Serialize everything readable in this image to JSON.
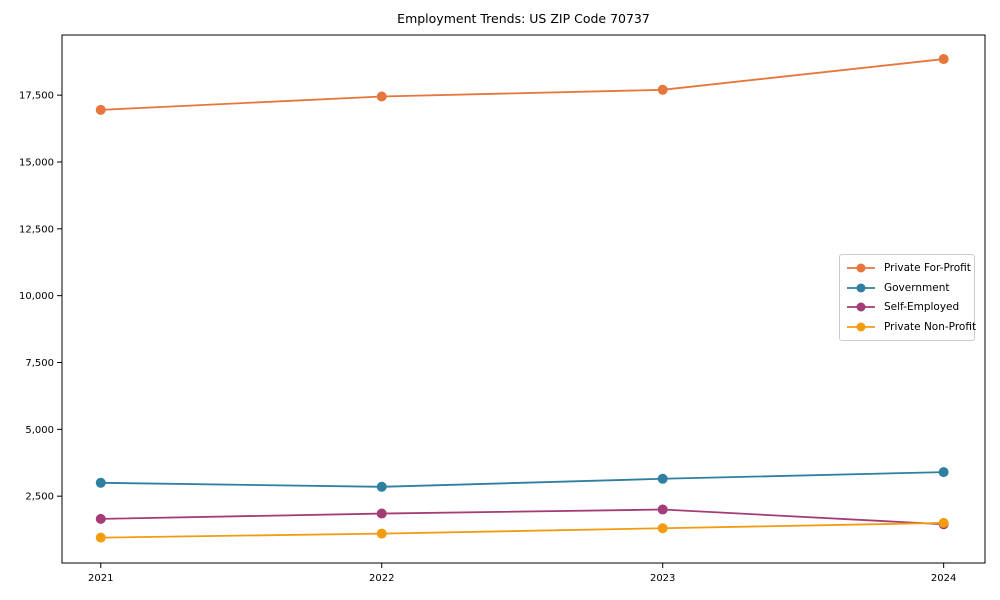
{
  "chart_data": {
    "type": "line",
    "title": "Employment Trends: US ZIP Code 70737",
    "xlabel": "",
    "ylabel": "",
    "categories": [
      "2021",
      "2022",
      "2023",
      "2024"
    ],
    "series": [
      {
        "name": "Private For-Profit",
        "color": "#E6763C",
        "values": [
          16950,
          17450,
          17700,
          18850
        ]
      },
      {
        "name": "Government",
        "color": "#2E7FA0",
        "values": [
          3000,
          2850,
          3150,
          3400
        ]
      },
      {
        "name": "Self-Employed",
        "color": "#A43C77",
        "values": [
          1650,
          1850,
          2000,
          1450
        ]
      },
      {
        "name": "Private Non-Profit",
        "color": "#F29C12",
        "values": [
          950,
          1100,
          1300,
          1500
        ]
      }
    ],
    "yticks": [
      2500,
      5000,
      7500,
      10000,
      12500,
      15000,
      17500
    ],
    "ytick_labels": [
      "2,500",
      "5,000",
      "7,500",
      "10,000",
      "12,500",
      "15,000",
      "17,500"
    ],
    "ylim": [
      0,
      19750
    ],
    "grid": false,
    "legend": {
      "position": "right-middle",
      "border_color": "#cccccc"
    },
    "axis_color": "#000000",
    "background": "#ffffff",
    "marker": "circle",
    "marker_radius": 5,
    "line_width": 1.8
  }
}
